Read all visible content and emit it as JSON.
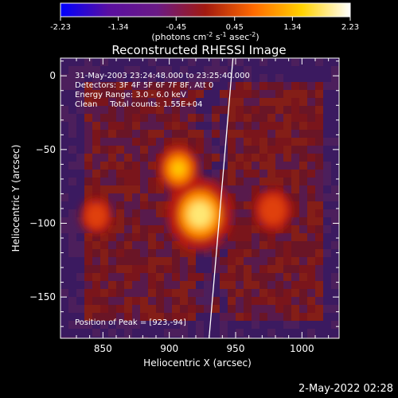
{
  "colorbar": {
    "tick_labels": [
      "-2.23",
      "-1.34",
      "-0.45",
      "0.45",
      "1.34",
      "2.23"
    ],
    "unit_base": "(photons cm",
    "unit_exp1": "-2",
    "unit_mid": " s",
    "unit_exp2": "-1",
    "unit_mid2": " asec",
    "unit_exp3": "-2",
    "unit_end": ")",
    "range": [
      -2.23,
      2.23
    ],
    "colors": [
      "#0000ff",
      "#5a0fa0",
      "#6a1a85",
      "#a21a10",
      "#ff6a00",
      "#ffd200",
      "#ffffff"
    ]
  },
  "chart_data": {
    "type": "heatmap",
    "title": "Reconstructed RHESSI Image",
    "xlabel": "Heliocentric X (arcsec)",
    "ylabel": "Heliocentric Y (arcsec)",
    "xlim": [
      818,
      1028
    ],
    "ylim": [
      -178,
      12
    ],
    "x_ticks": [
      850,
      900,
      950,
      1000
    ],
    "y_ticks": [
      0,
      -50,
      -100,
      -150
    ],
    "info_lines": [
      "31-May-2003 23:24:48.000 to 23:25:40.000",
      "Detectors: 3F 4F 5F 6F 7F 8F, Att 0",
      "Energy Range: 3.0 - 6.0 keV",
      "Clean     Total counts: 1.55E+04"
    ],
    "peak_label": "Position of Peak = [923,-94]",
    "peak": [
      923,
      -94
    ],
    "sources": [
      {
        "x": 923,
        "y": -94,
        "level": 2.23
      },
      {
        "x": 907,
        "y": -63,
        "level": 1.1
      },
      {
        "x": 978,
        "y": -91,
        "level": 0.9
      },
      {
        "x": 845,
        "y": -95,
        "level": 0.6
      }
    ],
    "limb_line": [
      [
        948,
        12
      ],
      [
        930,
        -178
      ]
    ]
  },
  "footer": {
    "date": "2-May-2022 02:28"
  }
}
